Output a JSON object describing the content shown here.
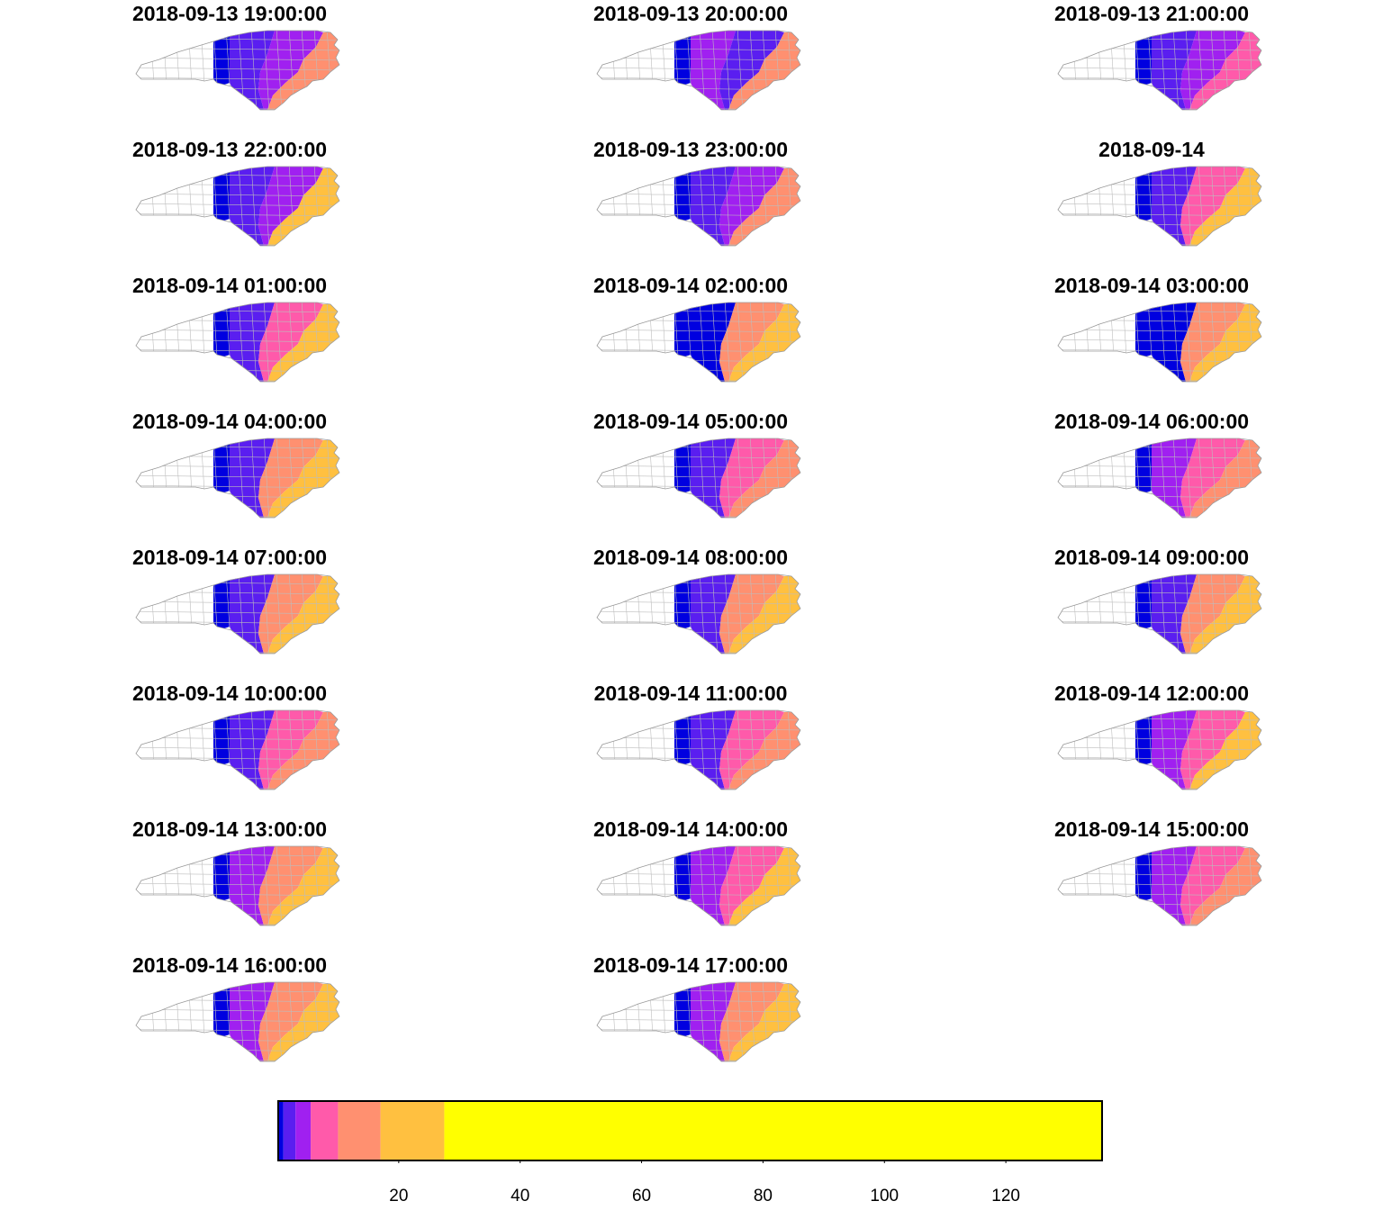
{
  "panels": [
    {
      "title": "2018-09-13 19:00:00",
      "west_level": 0,
      "mid_level": 1,
      "east_level": 2,
      "coast_level": 4
    },
    {
      "title": "2018-09-13 20:00:00",
      "west_level": 0,
      "mid_level": 2,
      "east_level": 1,
      "coast_level": 4
    },
    {
      "title": "2018-09-13 21:00:00",
      "west_level": 0,
      "mid_level": 1,
      "east_level": 2,
      "coast_level": 3
    },
    {
      "title": "2018-09-13 22:00:00",
      "west_level": 0,
      "mid_level": 1,
      "east_level": 2,
      "coast_level": 5
    },
    {
      "title": "2018-09-13 23:00:00",
      "west_level": 0,
      "mid_level": 1,
      "east_level": 2,
      "coast_level": 4
    },
    {
      "title": "2018-09-14",
      "west_level": 0,
      "mid_level": 1,
      "east_level": 3,
      "coast_level": 5
    },
    {
      "title": "2018-09-14 01:00:00",
      "west_level": 0,
      "mid_level": 1,
      "east_level": 3,
      "coast_level": 5
    },
    {
      "title": "2018-09-14 02:00:00",
      "west_level": 0,
      "mid_level": 0,
      "east_level": 4,
      "coast_level": 5
    },
    {
      "title": "2018-09-14 03:00:00",
      "west_level": 0,
      "mid_level": 0,
      "east_level": 4,
      "coast_level": 5
    },
    {
      "title": "2018-09-14 04:00:00",
      "west_level": 0,
      "mid_level": 1,
      "east_level": 4,
      "coast_level": 5
    },
    {
      "title": "2018-09-14 05:00:00",
      "west_level": 0,
      "mid_level": 1,
      "east_level": 3,
      "coast_level": 4
    },
    {
      "title": "2018-09-14 06:00:00",
      "west_level": 0,
      "mid_level": 2,
      "east_level": 3,
      "coast_level": 4
    },
    {
      "title": "2018-09-14 07:00:00",
      "west_level": 0,
      "mid_level": 1,
      "east_level": 4,
      "coast_level": 5
    },
    {
      "title": "2018-09-14 08:00:00",
      "west_level": 0,
      "mid_level": 1,
      "east_level": 4,
      "coast_level": 5
    },
    {
      "title": "2018-09-14 09:00:00",
      "west_level": 0,
      "mid_level": 1,
      "east_level": 4,
      "coast_level": 5
    },
    {
      "title": "2018-09-14 10:00:00",
      "west_level": 0,
      "mid_level": 1,
      "east_level": 3,
      "coast_level": 4
    },
    {
      "title": "2018-09-14 11:00:00",
      "west_level": 0,
      "mid_level": 1,
      "east_level": 3,
      "coast_level": 4
    },
    {
      "title": "2018-09-14 12:00:00",
      "west_level": 0,
      "mid_level": 2,
      "east_level": 3,
      "coast_level": 5
    },
    {
      "title": "2018-09-14 13:00:00",
      "west_level": 0,
      "mid_level": 2,
      "east_level": 4,
      "coast_level": 5
    },
    {
      "title": "2018-09-14 14:00:00",
      "west_level": 0,
      "mid_level": 2,
      "east_level": 3,
      "coast_level": 5
    },
    {
      "title": "2018-09-14 15:00:00",
      "west_level": 0,
      "mid_level": 2,
      "east_level": 3,
      "coast_level": 4
    },
    {
      "title": "2018-09-14 16:00:00",
      "west_level": 0,
      "mid_level": 2,
      "east_level": 4,
      "coast_level": 5
    },
    {
      "title": "2018-09-14 17:00:00",
      "west_level": 0,
      "mid_level": 2,
      "east_level": 4,
      "coast_level": 5
    }
  ],
  "legend": {
    "breaks": [
      0,
      1,
      3,
      5.5,
      10,
      17,
      27.5,
      136
    ],
    "colors": [
      "#0000e0",
      "#5a1ef0",
      "#a020f0",
      "#ff5aaa",
      "#ff9070",
      "#ffc040",
      "#ffff00"
    ],
    "range": [
      0,
      136
    ],
    "ticks": [
      "20",
      "40",
      "60",
      "80",
      "100",
      "120"
    ],
    "tick_values": [
      20,
      40,
      60,
      80,
      100,
      120
    ]
  },
  "empty_color": "#ffffff"
}
